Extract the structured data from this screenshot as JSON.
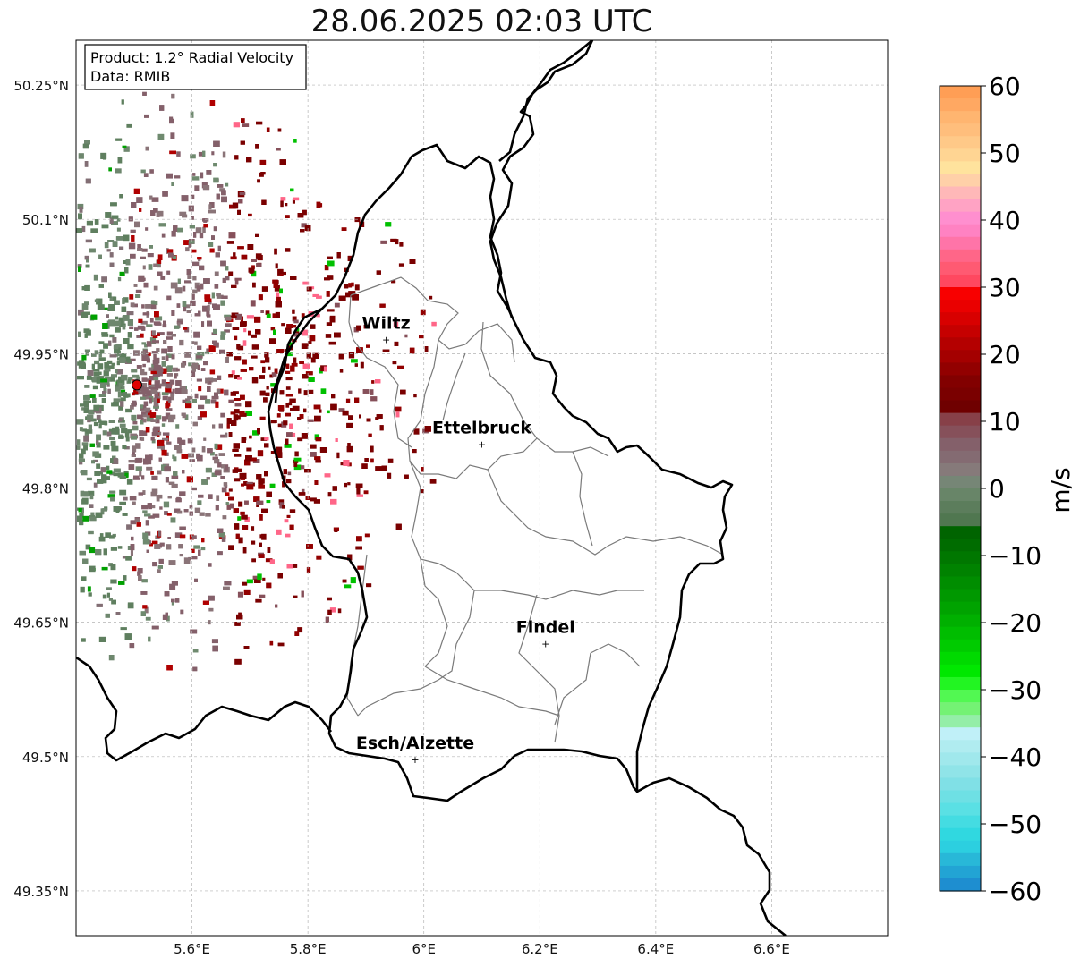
{
  "title": "28.06.2025 02:03 UTC",
  "info_box": {
    "product": "Product: 1.2° Radial Velocity",
    "source": "Data: RMIB"
  },
  "map": {
    "lon_range": [
      5.4,
      6.8
    ],
    "lat_range": [
      49.3,
      50.3
    ],
    "lat_ticks": [
      {
        "value": 50.25,
        "label": "50.25°N"
      },
      {
        "value": 50.1,
        "label": "50.1°N"
      },
      {
        "value": 49.95,
        "label": "49.95°N"
      },
      {
        "value": 49.8,
        "label": "49.8°N"
      },
      {
        "value": 49.65,
        "label": "49.65°N"
      },
      {
        "value": 49.5,
        "label": "49.5°N"
      },
      {
        "value": 49.35,
        "label": "49.35°N"
      }
    ],
    "lon_ticks": [
      {
        "value": 5.6,
        "label": "5.6°E"
      },
      {
        "value": 5.8,
        "label": "5.8°E"
      },
      {
        "value": 6.0,
        "label": "6°E"
      },
      {
        "value": 6.2,
        "label": "6.2°E"
      },
      {
        "value": 6.4,
        "label": "6.4°E"
      },
      {
        "value": 6.6,
        "label": "6.6°E"
      }
    ],
    "grid": true,
    "radar_site": {
      "lon": 5.505,
      "lat": 49.915,
      "color": "#e00000"
    },
    "cities": [
      {
        "name": "Wiltz",
        "lon": 5.935,
        "lat": 49.966
      },
      {
        "name": "Ettelbruck",
        "lon": 6.1,
        "lat": 49.849
      },
      {
        "name": "Findel",
        "lon": 6.21,
        "lat": 49.626
      },
      {
        "name": "Esch/Alzette",
        "lon": 5.985,
        "lat": 49.497
      }
    ]
  },
  "colorbar": {
    "label": "m/s",
    "min": -60,
    "max": 60,
    "ticks": [
      {
        "value": 60,
        "label": "60"
      },
      {
        "value": 50,
        "label": "50"
      },
      {
        "value": 40,
        "label": "40"
      },
      {
        "value": 30,
        "label": "30"
      },
      {
        "value": 20,
        "label": "20"
      },
      {
        "value": 10,
        "label": "10"
      },
      {
        "value": 0,
        "label": "0"
      },
      {
        "value": -10,
        "label": "−10"
      },
      {
        "value": -20,
        "label": "−20"
      },
      {
        "value": -30,
        "label": "−30"
      },
      {
        "value": -40,
        "label": "−40"
      },
      {
        "value": -50,
        "label": "−50"
      },
      {
        "value": -60,
        "label": "−60"
      }
    ],
    "colors_top_to_bottom": [
      "#ff9e55",
      "#ffa862",
      "#ffb570",
      "#ffbe7c",
      "#ffc988",
      "#ffd593",
      "#ffe39d",
      "#ffd0a8",
      "#ffb8b8",
      "#ffa3c4",
      "#ff8fcf",
      "#ff82c2",
      "#ff74a8",
      "#ff6688",
      "#ff5a72",
      "#ff4860",
      "#f80000",
      "#ea0000",
      "#d80000",
      "#c60000",
      "#b40000",
      "#a40000",
      "#920000",
      "#820000",
      "#7a0000",
      "#6f0000",
      "#874048",
      "#86505a",
      "#84606a",
      "#846b72",
      "#867a7a",
      "#768676",
      "#688568",
      "#5c7d5c",
      "#507750",
      "#006400",
      "#006c00",
      "#007700",
      "#008200",
      "#008d00",
      "#009800",
      "#00a300",
      "#00b000",
      "#00bd00",
      "#00cb00",
      "#00da00",
      "#00e800",
      "#22f522",
      "#52f852",
      "#74f274",
      "#94eea8",
      "#c0f0f8",
      "#b0ecf0",
      "#a0e8ec",
      "#90e4e8",
      "#80e0e6",
      "#6ee0e4",
      "#5ae0e4",
      "#44dce2",
      "#30d8e0",
      "#2ccfe0",
      "#28b8d8",
      "#22a4d4",
      "#1e8ed0"
    ]
  }
}
